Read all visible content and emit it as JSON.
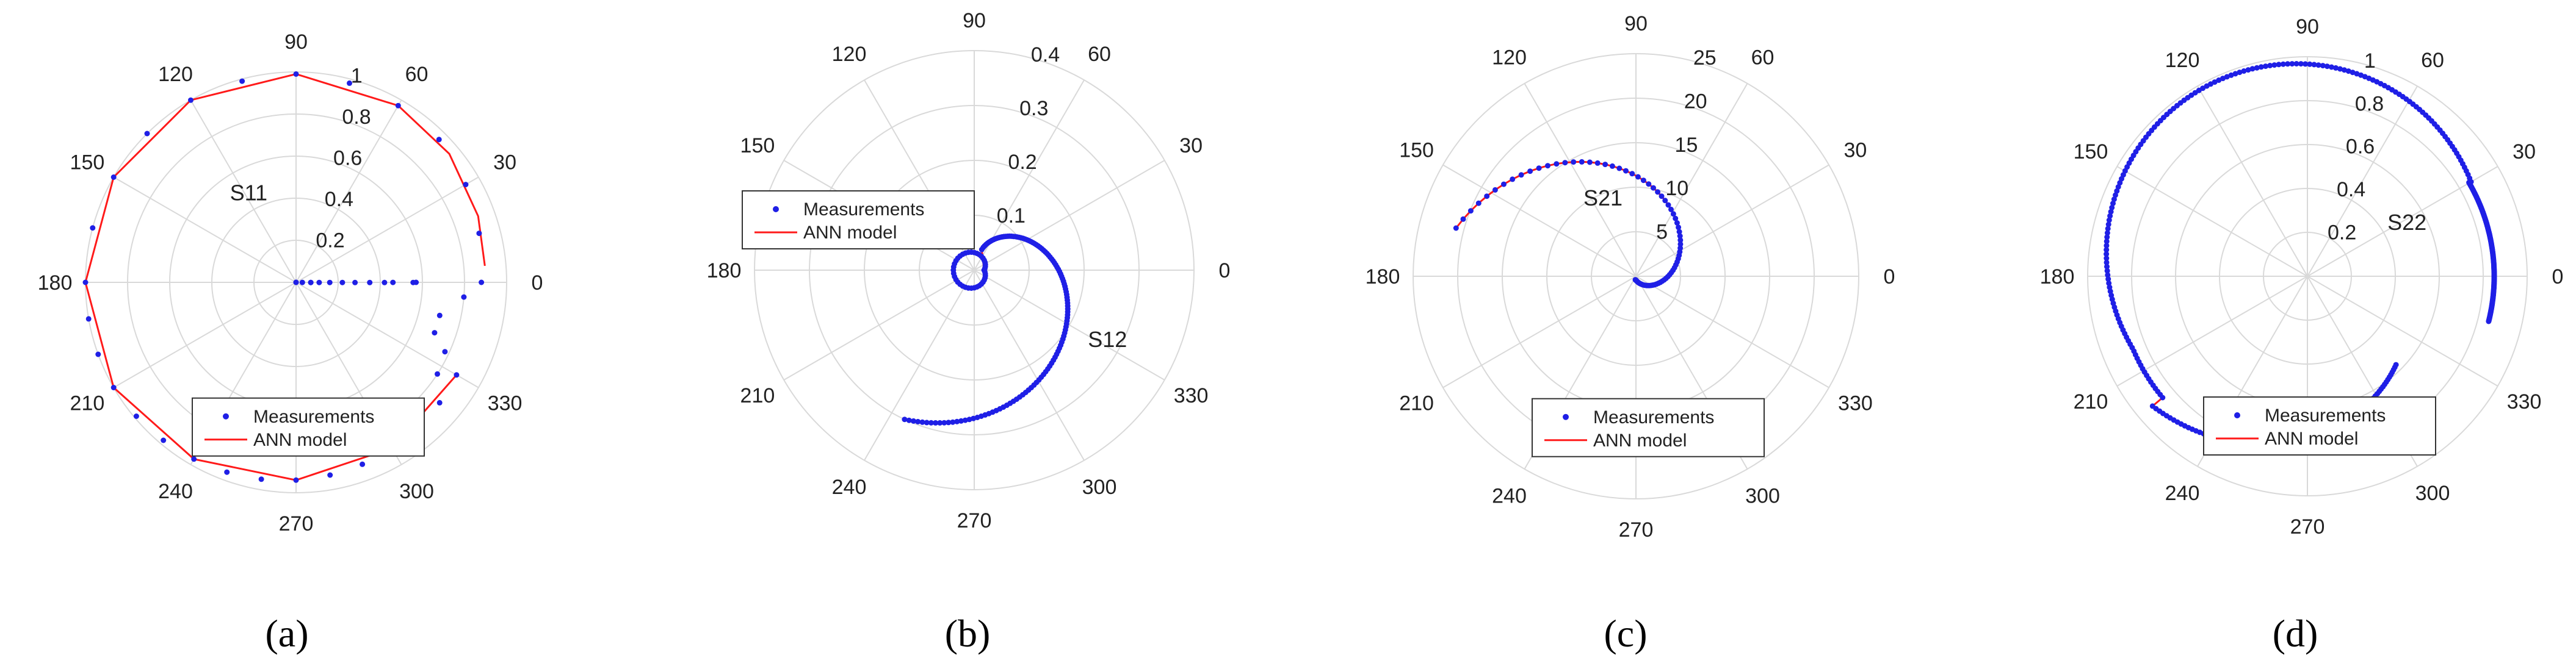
{
  "figure": {
    "captions": [
      "(a)",
      "(b)",
      "(c)",
      "(d)"
    ]
  },
  "colors": {
    "grid": "#d9d9d9",
    "tick_text": "#222222",
    "measurement": "#1f1fe6",
    "model": "#ff1a1a"
  },
  "chart_data": [
    {
      "type": "polar",
      "panel": "(a)",
      "series_label": "S11",
      "rlim": [
        0,
        1
      ],
      "angle_ticks": [
        "0",
        "30",
        "60",
        "90",
        "120",
        "150",
        "180",
        "210",
        "240",
        "270",
        "300",
        "330"
      ],
      "radial_ticks": [
        "0.2",
        "0.4",
        "0.6",
        "0.8",
        "1"
      ],
      "legend": [
        "Measurements",
        "ANN model"
      ],
      "legend_position": "bottom-center",
      "series": [
        {
          "name": "Measurements",
          "points": [
            [
              -0.006,
              0.57
            ],
            [
              -0.06,
              0.556
            ],
            [
              -0.04,
              0.46
            ],
            [
              -0.11,
              0.42
            ],
            [
              -0.14,
              0.35
            ],
            [
              -0.16,
              0.28
            ],
            [
              -0.17,
              0.22
            ],
            [
              -0.18,
              0.16
            ],
            [
              -0.25,
              0.11
            ],
            [
              -0.4,
              0.07
            ],
            [
              -0.5,
              0.07
            ],
            [
              -0.8,
              0.03
            ],
            [
              -1,
              0.0
            ],
            [
              -1,
              0.0
            ],
            [
              -5,
              0.8
            ],
            [
              -13,
              0.7
            ],
            [
              -20,
              0.7
            ],
            [
              -25,
              0.78
            ],
            [
              -33,
              0.8
            ],
            [
              0,
              0.88
            ],
            [
              15,
              0.9
            ],
            [
              30,
              0.93
            ],
            [
              45,
              0.96
            ],
            [
              60,
              0.97
            ],
            [
              75,
              0.98
            ],
            [
              90,
              0.99
            ],
            [
              105,
              0.99
            ],
            [
              120,
              1.0
            ],
            [
              135,
              1.0
            ],
            [
              150,
              1.0
            ],
            [
              165,
              1.0
            ],
            [
              180,
              1.0
            ],
            [
              190,
              1.0
            ],
            [
              200,
              1.0
            ],
            [
              210,
              1.0
            ],
            [
              220,
              0.99
            ],
            [
              230,
              0.98
            ],
            [
              240,
              0.97
            ],
            [
              250,
              0.96
            ],
            [
              260,
              0.95
            ],
            [
              270,
              0.94
            ],
            [
              280,
              0.93
            ],
            [
              290,
              0.92
            ],
            [
              300,
              0.91
            ],
            [
              310,
              0.9
            ],
            [
              320,
              0.89
            ],
            [
              330,
              0.88
            ]
          ]
        },
        {
          "name": "ANN model",
          "points": [
            [
              5,
              0.9
            ],
            [
              20,
              0.92
            ],
            [
              40,
              0.95
            ],
            [
              60,
              0.97
            ],
            [
              90,
              0.99
            ],
            [
              120,
              1.0
            ],
            [
              150,
              1.0
            ],
            [
              180,
              1.0
            ],
            [
              210,
              1.0
            ],
            [
              240,
              0.97
            ],
            [
              270,
              0.94
            ],
            [
              300,
              0.91
            ],
            [
              330,
              0.88
            ]
          ]
        }
      ]
    },
    {
      "type": "polar",
      "panel": "(b)",
      "series_label": "S12",
      "rlim": [
        0,
        0.4
      ],
      "angle_ticks": [
        "0",
        "30",
        "60",
        "90",
        "120",
        "150",
        "180",
        "210",
        "240",
        "270",
        "300",
        "330"
      ],
      "radial_ticks": [
        "0.1",
        "0.2",
        "0.3",
        "0.4"
      ],
      "legend": [
        "Measurements",
        "ANN model"
      ],
      "legend_position": "top-left",
      "series": [
        {
          "name": "Measurements",
          "points": []
        },
        {
          "name": "ANN model",
          "points": []
        }
      ]
    },
    {
      "type": "polar",
      "panel": "(c)",
      "series_label": "S21",
      "rlim": [
        0,
        25
      ],
      "angle_ticks": [
        "0",
        "30",
        "60",
        "90",
        "120",
        "150",
        "180",
        "210",
        "240",
        "270",
        "300",
        "330"
      ],
      "radial_ticks": [
        "5",
        "10",
        "15",
        "20",
        "25"
      ],
      "legend": [
        "Measurements",
        "ANN model"
      ],
      "legend_position": "bottom-center",
      "series": [
        {
          "name": "Measurements",
          "points": []
        },
        {
          "name": "ANN model",
          "points": []
        }
      ]
    },
    {
      "type": "polar",
      "panel": "(d)",
      "series_label": "S22",
      "rlim": [
        0,
        1
      ],
      "angle_ticks": [
        "0",
        "30",
        "60",
        "90",
        "120",
        "150",
        "180",
        "210",
        "240",
        "270",
        "300",
        "330"
      ],
      "radial_ticks": [
        "0.2",
        "0.4",
        "0.6",
        "0.8",
        "1"
      ],
      "legend": [
        "Measurements",
        "ANN model"
      ],
      "legend_position": "bottom-center",
      "series": [
        {
          "name": "Measurements",
          "points": []
        },
        {
          "name": "ANN model",
          "points": []
        }
      ]
    }
  ]
}
